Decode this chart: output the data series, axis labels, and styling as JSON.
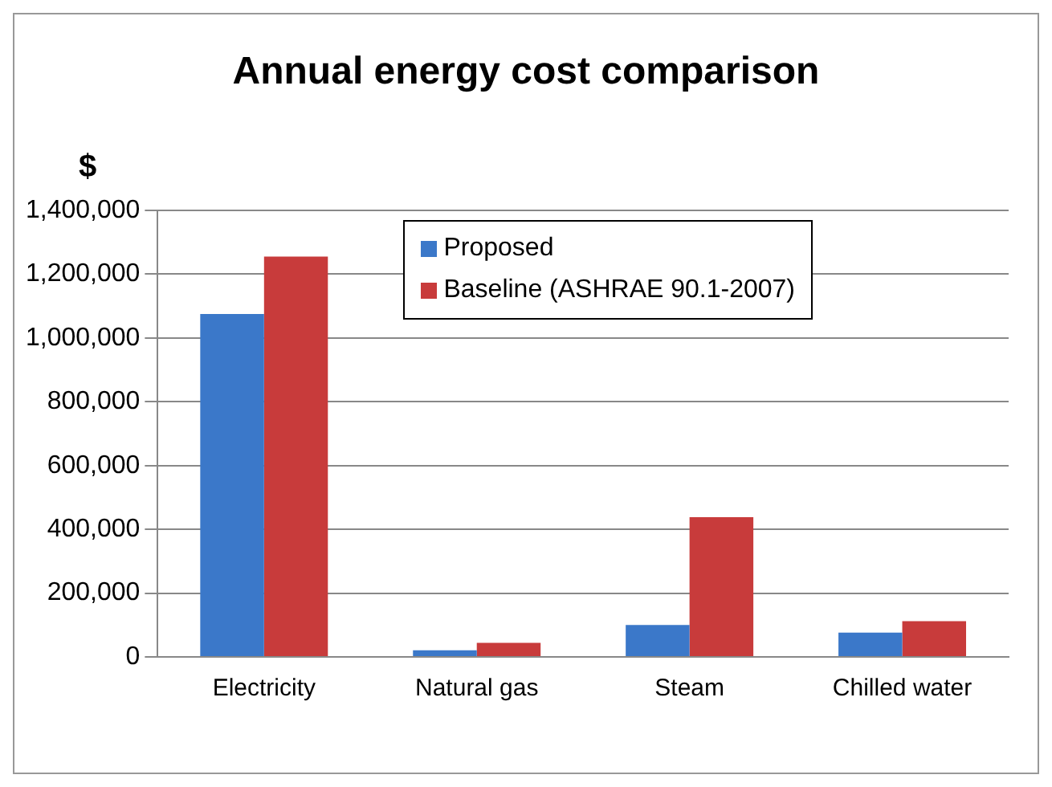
{
  "chart_data": {
    "type": "bar",
    "title": "Annual energy cost comparison",
    "ylabel": "$",
    "categories": [
      "Electricity",
      "Natural gas",
      "Steam",
      "Chilled water"
    ],
    "series": [
      {
        "name": "Proposed",
        "color": "#3b78c9",
        "values": [
          1075000,
          21000,
          100000,
          76000
        ]
      },
      {
        "name": "Baseline (ASHRAE 90.1-2007)",
        "color": "#c83b3b",
        "values": [
          1255000,
          44000,
          438000,
          112000
        ]
      }
    ],
    "ylim": [
      0,
      1400000
    ],
    "yticks": [
      0,
      {
        "value": 200000,
        "label": "200,000"
      },
      {
        "value": 400000,
        "label": "400,000"
      },
      {
        "value": 600000,
        "label": "600,000"
      },
      {
        "value": 800000,
        "label": "800,000"
      },
      {
        "value": 1000000,
        "label": "1,000,000"
      },
      {
        "value": 1200000,
        "label": "1,200,000"
      },
      {
        "value": 1400000,
        "label": "1,400,000"
      }
    ],
    "grid": "y",
    "legend": "top right"
  }
}
